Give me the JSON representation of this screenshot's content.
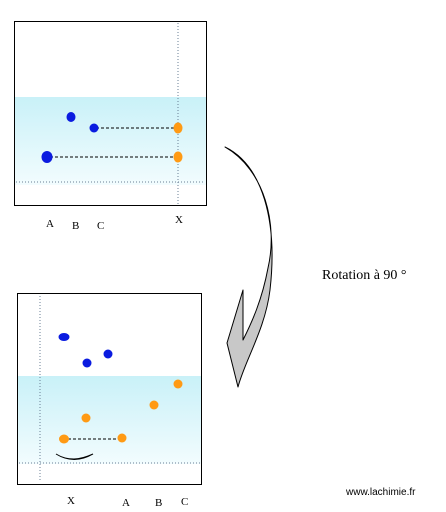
{
  "diagram": {
    "colors": {
      "frame": "#000000",
      "band": "#dff6fb",
      "band_edge": "#c8eef6",
      "blue_spot": "#0a1be0",
      "orange_spot": "#ff9a14",
      "arrow_fill": "#c8c8c8",
      "guide": "#6a7f95"
    },
    "top_panel": {
      "lane_labels": [
        "A",
        "B",
        "C",
        "X"
      ]
    },
    "bottom_panel": {
      "lane_labels": [
        "X",
        "A",
        "B",
        "C"
      ]
    },
    "rotation_label": "Rotation à 90 °",
    "credit": "www.lachimie.fr"
  }
}
